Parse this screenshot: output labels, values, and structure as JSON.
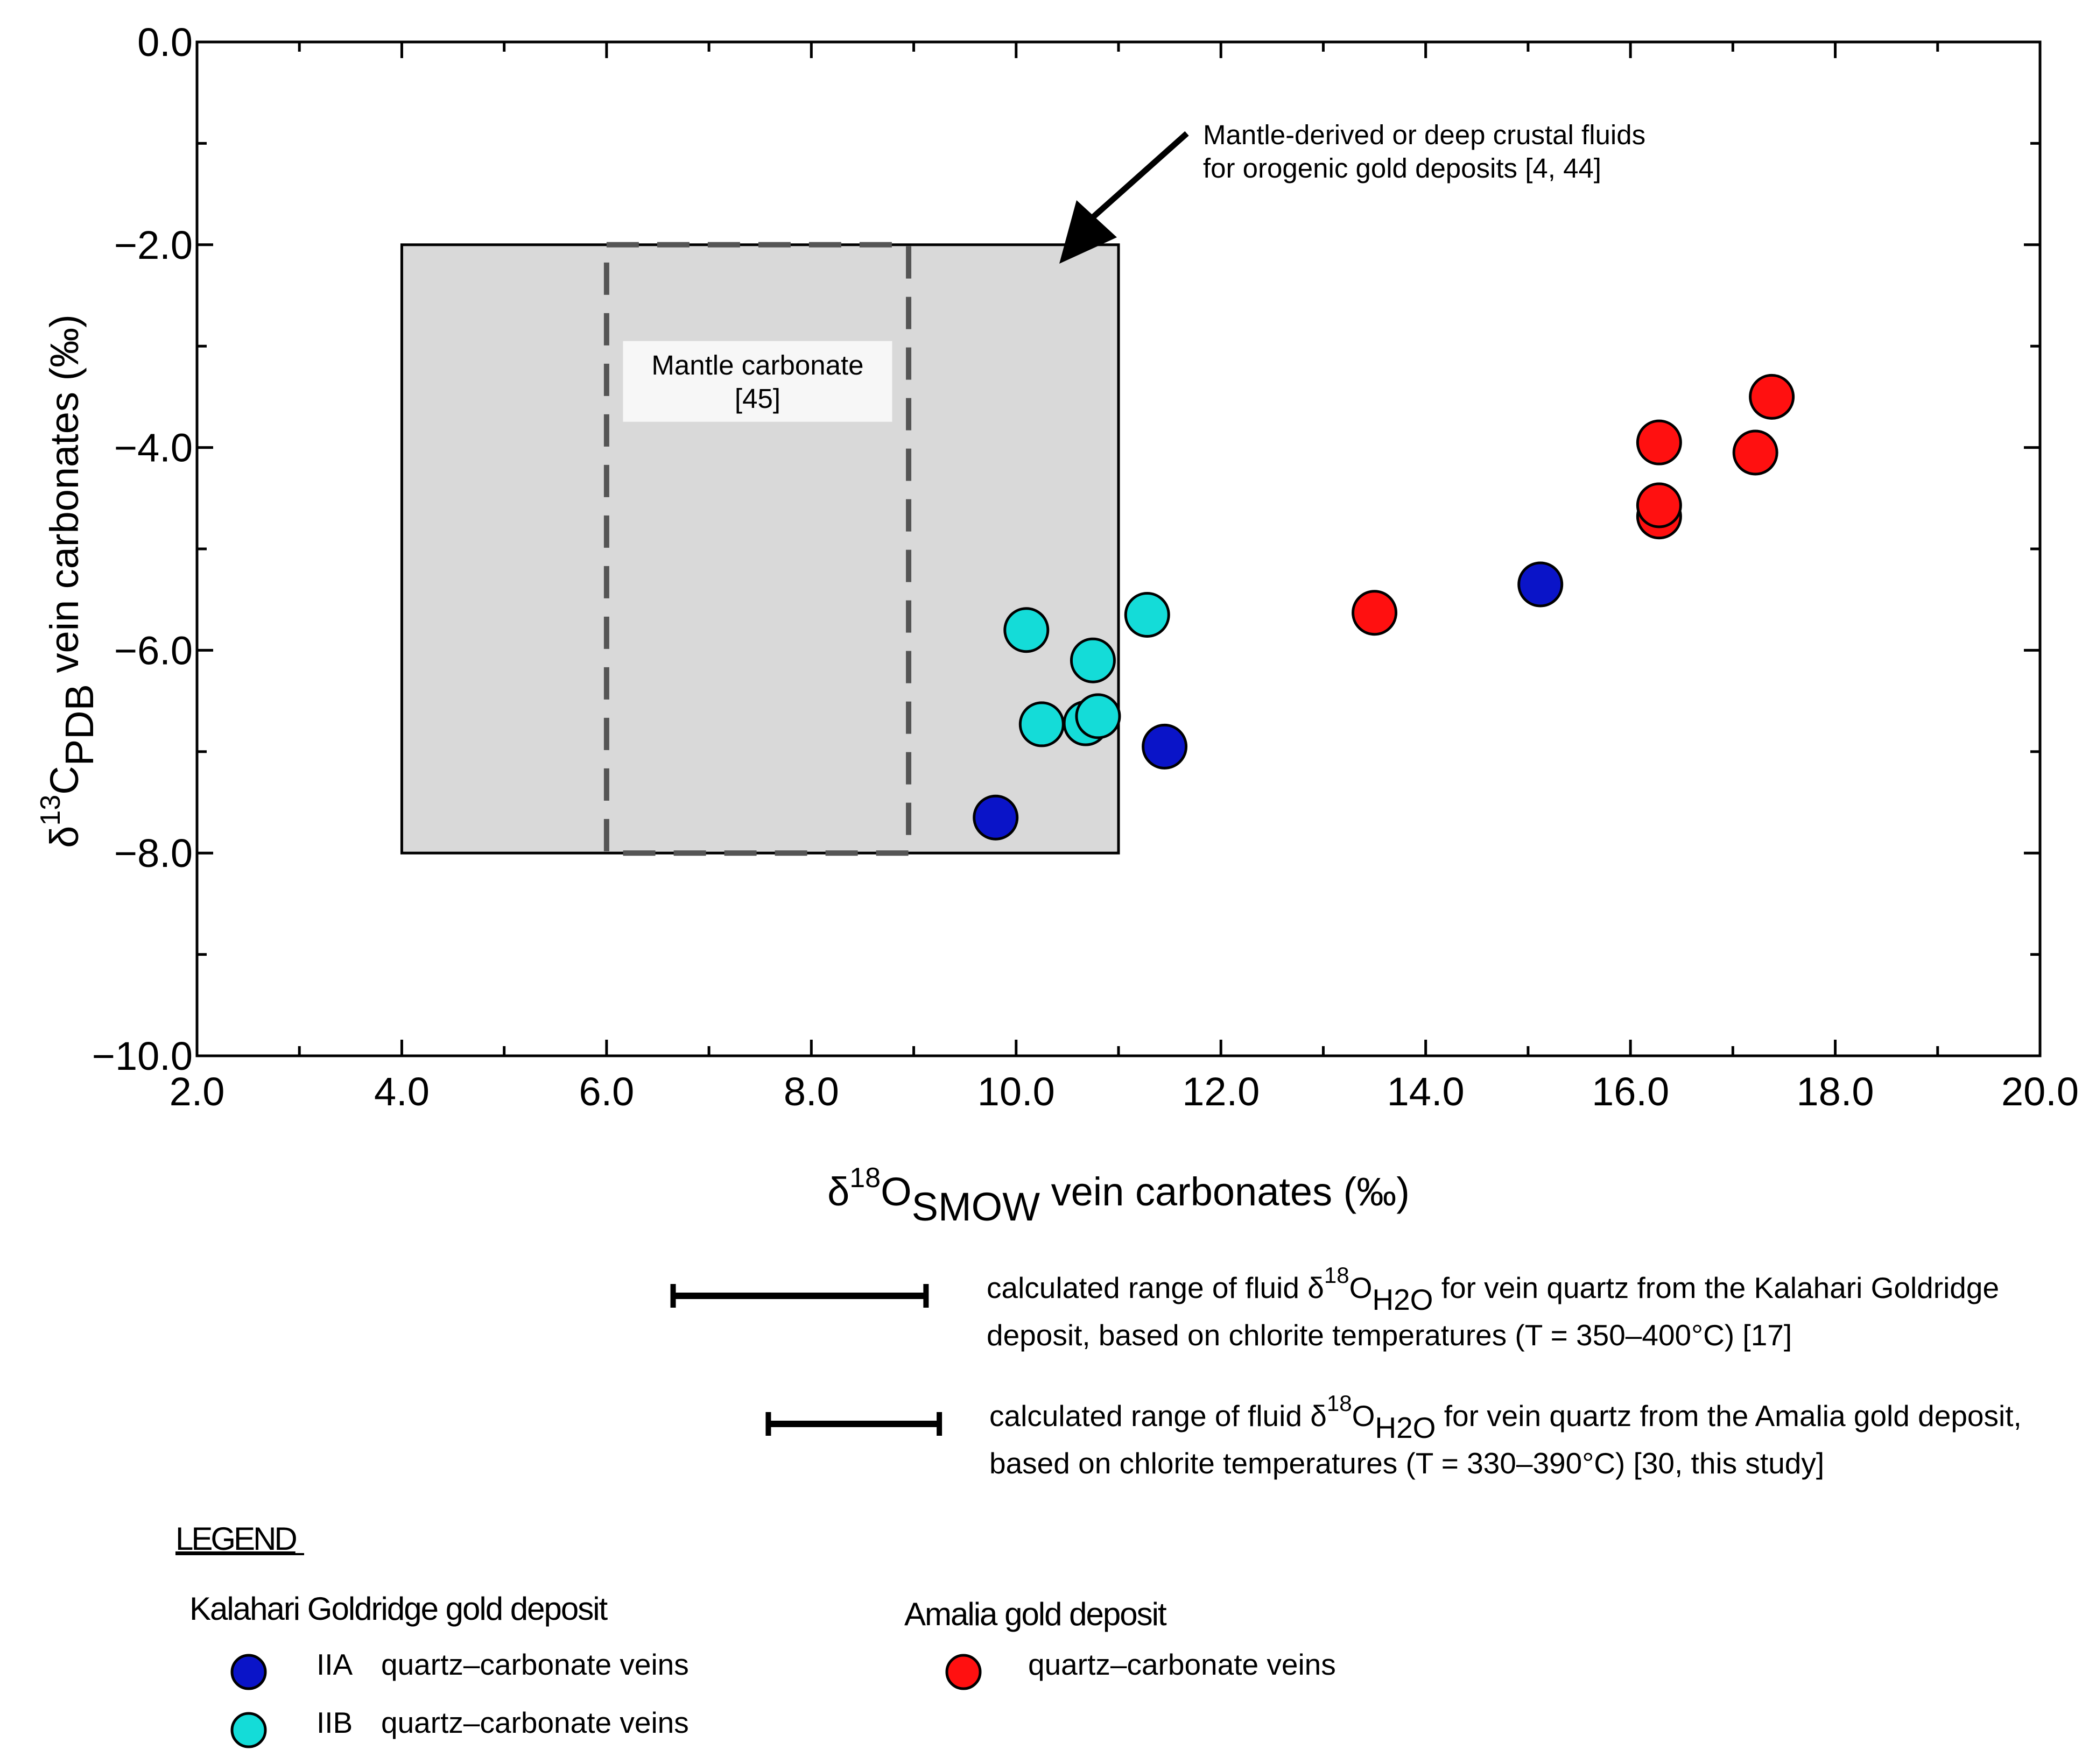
{
  "chart_data": {
    "type": "scatter",
    "title": "",
    "xlabel": {
      "prefix": "δ",
      "sup": "18",
      "main": "O",
      "sub": "SMOW",
      "rest": " vein carbonates (‰)"
    },
    "ylabel": {
      "prefix": "δ",
      "sup": "13",
      "main": "C",
      "sub": "PDB",
      "rest": " vein carbonates (‰)"
    },
    "xlim": [
      2.0,
      20.0
    ],
    "ylim": [
      -10.0,
      0.0
    ],
    "xticks": [
      2.0,
      4.0,
      6.0,
      8.0,
      10.0,
      12.0,
      14.0,
      16.0,
      18.0,
      20.0
    ],
    "yticks": [
      0.0,
      -2.0,
      -4.0,
      -6.0,
      -8.0,
      -10.0
    ],
    "x_tick_labels": [
      "2.0",
      "4.0",
      "6.0",
      "8.0",
      "10.0",
      "12.0",
      "14.0",
      "16.0",
      "18.0",
      "20.0"
    ],
    "y_tick_labels": [
      "0.0",
      "−2.0",
      "−4.0",
      "−6.0",
      "−8.0",
      "−10.0"
    ],
    "series": [
      {
        "name": "Kalahari Goldridge IIA quartz–carbonate veins",
        "color": "#0a14c8",
        "points": [
          [
            9.8,
            -7.65
          ],
          [
            11.45,
            -6.95
          ],
          [
            15.12,
            -5.35
          ]
        ]
      },
      {
        "name": "Kalahari Goldridge IIB quartz–carbonate veins",
        "color": "#14dcd8",
        "points": [
          [
            10.1,
            -5.8
          ],
          [
            11.28,
            -5.65
          ],
          [
            10.75,
            -6.1
          ],
          [
            10.25,
            -6.73
          ],
          [
            10.68,
            -6.72
          ],
          [
            10.8,
            -6.65
          ]
        ]
      },
      {
        "name": "Amalia quartz–carbonate veins",
        "color": "#ff1010",
        "points": [
          [
            13.5,
            -5.63
          ],
          [
            16.28,
            -4.68
          ],
          [
            16.28,
            -4.57
          ],
          [
            16.28,
            -3.95
          ],
          [
            17.22,
            -4.05
          ],
          [
            17.38,
            -3.5
          ]
        ]
      }
    ],
    "regions": [
      {
        "name": "mantle-derived-fluids-box",
        "x": [
          4.0,
          11.0
        ],
        "y": [
          -8.0,
          -2.0
        ],
        "fill": "#d9d9d9",
        "border": "#000000"
      },
      {
        "name": "mantle-carbonate-box",
        "x": [
          6.0,
          8.95
        ],
        "y": [
          -8.0,
          -2.0
        ],
        "border": "#555555",
        "dashed": true
      }
    ],
    "annotations": {
      "mantle_fluids": [
        "Mantle-derived or deep crustal fluids",
        "for orogenic gold deposits [4, 44]"
      ],
      "mantle_carbonate": [
        "Mantle carbonate",
        "[45]"
      ]
    },
    "ranges": [
      {
        "name": "Kalahari Goldridge fluid range",
        "x": [
          6.65,
          9.12
        ],
        "text_before": "calculated range of fluid δ",
        "sup": "18",
        "main": "O",
        "sub": "H2O",
        "text_after": " for vein quartz from the Kalahari Goldridge",
        "line2": "deposit, based on chlorite temperatures (T = 350–400°C) [17]"
      },
      {
        "name": "Amalia fluid range",
        "x": [
          7.58,
          9.25
        ],
        "text_before": "calculated range of fluid δ",
        "sup": "18",
        "main": "O",
        "sub": "H2O",
        "text_after": " for vein quartz from the Amalia gold deposit,",
        "line2": "based on chlorite temperatures (T = 330–390°C) [30, this study]"
      }
    ],
    "legend": {
      "heading": "LEGEND",
      "group1_title": "Kalahari Goldridge gold deposit",
      "group2_title": "Amalia gold deposit",
      "items": [
        {
          "code": "IIA",
          "label": "quartz–carbonate veins",
          "color": "#0a14c8"
        },
        {
          "code": "IIB",
          "label": "quartz–carbonate veins",
          "color": "#14dcd8"
        },
        {
          "code": "",
          "label": "quartz–carbonate veins",
          "color": "#ff1010"
        }
      ]
    }
  }
}
